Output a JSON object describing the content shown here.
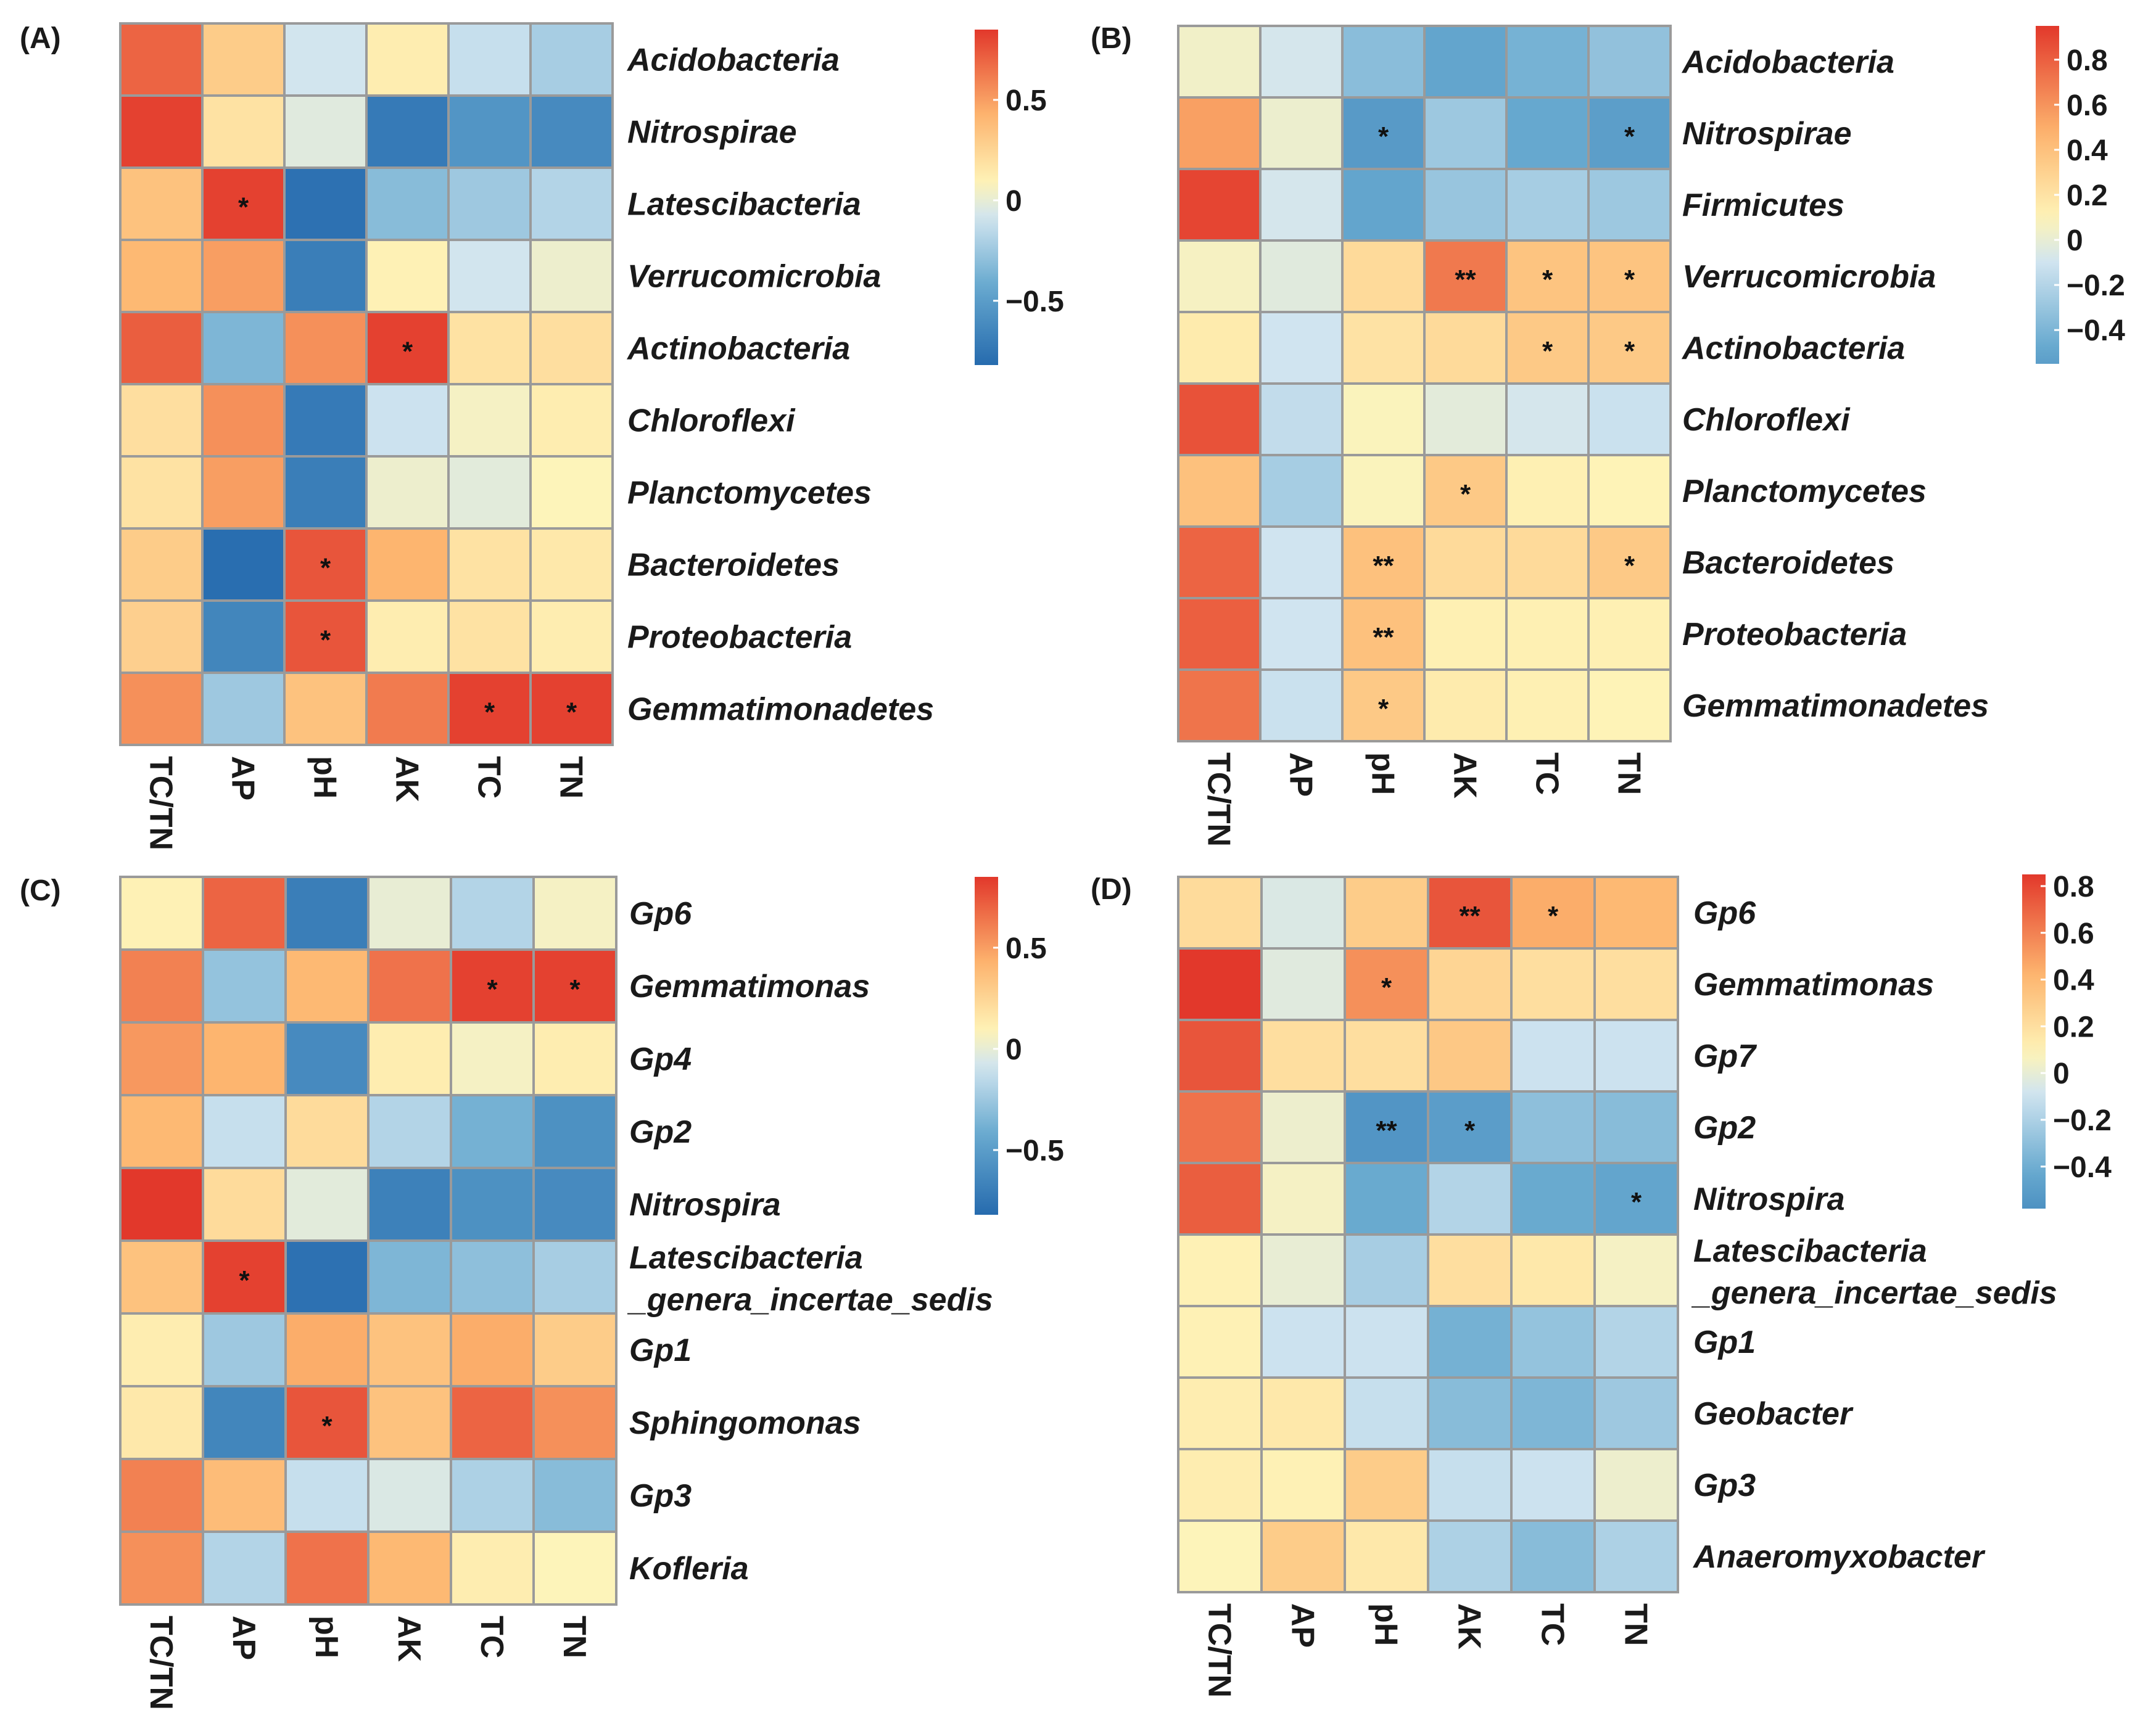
{
  "chart_data": [
    {
      "type": "heatmap",
      "panel_label": "(A)",
      "columns": [
        "TC/TN",
        "AP",
        "pH",
        "AK",
        "TC",
        "TN"
      ],
      "rows": [
        "Acidobacteria",
        "Nitrospirae",
        "Latescibacteria",
        "Verrucomicrobia",
        "Actinobacteria",
        "Chloroflexi",
        "Planctomycetes",
        "Bacteroidetes",
        "Proteobacteria",
        "Gemmatimonadetes"
      ],
      "values": [
        [
          0.7,
          0.3,
          -0.08,
          0.12,
          -0.12,
          -0.22
        ],
        [
          0.82,
          0.18,
          -0.03,
          -0.72,
          -0.55,
          -0.62
        ],
        [
          0.35,
          0.82,
          -0.78,
          -0.32,
          -0.25,
          -0.18
        ],
        [
          0.4,
          0.5,
          -0.7,
          0.1,
          -0.08,
          0.02
        ],
        [
          0.72,
          -0.35,
          0.55,
          0.82,
          0.18,
          0.2
        ],
        [
          0.2,
          0.55,
          -0.72,
          -0.1,
          0.05,
          0.12
        ],
        [
          0.18,
          0.5,
          -0.7,
          0.02,
          -0.02,
          0.08
        ],
        [
          0.3,
          -0.8,
          0.75,
          0.42,
          0.18,
          0.15
        ],
        [
          0.28,
          -0.65,
          0.75,
          0.12,
          0.18,
          0.12
        ],
        [
          0.55,
          -0.25,
          0.35,
          0.62,
          0.82,
          0.82
        ]
      ],
      "significance": [
        [
          "",
          "",
          "",
          "",
          "",
          ""
        ],
        [
          "",
          "",
          "",
          "",
          "",
          ""
        ],
        [
          "",
          "*",
          "",
          "",
          "",
          ""
        ],
        [
          "",
          "",
          "",
          "",
          "",
          ""
        ],
        [
          "",
          "",
          "",
          "*",
          "",
          ""
        ],
        [
          "",
          "",
          "",
          "",
          "",
          ""
        ],
        [
          "",
          "",
          "",
          "",
          "",
          ""
        ],
        [
          "",
          "",
          "*",
          "",
          "",
          ""
        ],
        [
          "",
          "",
          "*",
          "",
          "",
          ""
        ],
        [
          "",
          "",
          "",
          "",
          "*",
          "*"
        ]
      ],
      "colorbar": {
        "min": -0.82,
        "max": 0.85,
        "ticks": [
          0.5,
          0,
          -0.5
        ],
        "tick_labels": [
          "0.5",
          "0",
          "−0.5"
        ]
      }
    },
    {
      "type": "heatmap",
      "panel_label": "(B)",
      "columns": [
        "TC/TN",
        "AP",
        "pH",
        "AK",
        "TC",
        "TN"
      ],
      "rows": [
        "Acidobacteria",
        "Nitrospirae",
        "Firmicutes",
        "Verrucomicrobia",
        "Actinobacteria",
        "Chloroflexi",
        "Planctomycetes",
        "Bacteroidetes",
        "Proteobacteria",
        "Gemmatimonadetes"
      ],
      "values": [
        [
          0.04,
          -0.08,
          -0.35,
          -0.5,
          -0.42,
          -0.32
        ],
        [
          0.55,
          0.02,
          -0.58,
          -0.28,
          -0.48,
          -0.55
        ],
        [
          0.9,
          -0.08,
          -0.5,
          -0.3,
          -0.25,
          -0.28
        ],
        [
          0.06,
          -0.03,
          0.25,
          0.7,
          0.38,
          0.38
        ],
        [
          0.15,
          -0.1,
          0.2,
          0.25,
          0.35,
          0.35
        ],
        [
          0.85,
          -0.15,
          0.08,
          -0.02,
          -0.08,
          -0.12
        ],
        [
          0.4,
          -0.25,
          0.08,
          0.35,
          0.12,
          0.1
        ],
        [
          0.78,
          -0.1,
          0.4,
          0.25,
          0.25,
          0.35
        ],
        [
          0.8,
          -0.1,
          0.4,
          0.12,
          0.12,
          0.12
        ],
        [
          0.72,
          -0.12,
          0.35,
          0.15,
          0.12,
          0.1
        ]
      ],
      "significance": [
        [
          "",
          "",
          "",
          "",
          "",
          ""
        ],
        [
          "",
          "",
          "*",
          "",
          "",
          "*"
        ],
        [
          "",
          "",
          "",
          "",
          "",
          ""
        ],
        [
          "",
          "",
          "",
          "**",
          "*",
          "*"
        ],
        [
          "",
          "",
          "",
          "",
          "*",
          "*"
        ],
        [
          "",
          "",
          "",
          "",
          "",
          ""
        ],
        [
          "",
          "",
          "",
          "*",
          "",
          ""
        ],
        [
          "",
          "",
          "**",
          "",
          "",
          "*"
        ],
        [
          "",
          "",
          "**",
          "",
          "",
          ""
        ],
        [
          "",
          "",
          "*",
          "",
          "",
          ""
        ]
      ],
      "colorbar": {
        "min": -0.55,
        "max": 0.95,
        "ticks": [
          0.8,
          0.6,
          0.4,
          0.2,
          0,
          -0.2,
          -0.4
        ],
        "tick_labels": [
          "0.8",
          "0.6",
          "0.4",
          "0.2",
          "0",
          "−0.2",
          "−0.4"
        ]
      }
    },
    {
      "type": "heatmap",
      "panel_label": "(C)",
      "columns": [
        "TC/TN",
        "AP",
        "pH",
        "AK",
        "TC",
        "TN"
      ],
      "rows": [
        "Gp6",
        "Gemmatimonas",
        "Gp4",
        "Gp2",
        "Nitrospira",
        "Latescibacteria\n_genera_incertae_sedis",
        "Gp1",
        "Sphingomonas",
        "Gp3",
        "Kofleria"
      ],
      "values": [
        [
          0.1,
          0.7,
          -0.7,
          0.0,
          -0.18,
          0.05
        ],
        [
          0.6,
          -0.28,
          0.4,
          0.65,
          0.82,
          0.82
        ],
        [
          0.52,
          0.42,
          -0.62,
          0.12,
          0.05,
          0.12
        ],
        [
          0.4,
          -0.12,
          0.22,
          -0.18,
          -0.38,
          -0.58
        ],
        [
          0.85,
          0.22,
          -0.02,
          -0.68,
          -0.58,
          -0.62
        ],
        [
          0.35,
          0.82,
          -0.78,
          -0.35,
          -0.3,
          -0.22
        ],
        [
          0.12,
          -0.25,
          0.45,
          0.35,
          0.45,
          0.3
        ],
        [
          0.15,
          -0.65,
          0.75,
          0.35,
          0.7,
          0.55
        ],
        [
          0.6,
          0.38,
          -0.12,
          -0.05,
          -0.2,
          -0.32
        ],
        [
          0.55,
          -0.18,
          0.65,
          0.4,
          0.12,
          0.08
        ]
      ],
      "significance": [
        [
          "",
          "",
          "",
          "",
          "",
          ""
        ],
        [
          "",
          "",
          "",
          "",
          "*",
          "*"
        ],
        [
          "",
          "",
          "",
          "",
          "",
          ""
        ],
        [
          "",
          "",
          "",
          "",
          "",
          ""
        ],
        [
          "",
          "",
          "",
          "",
          "",
          ""
        ],
        [
          "",
          "*",
          "",
          "",
          "",
          ""
        ],
        [
          "",
          "",
          "",
          "",
          "",
          ""
        ],
        [
          "",
          "",
          "*",
          "",
          "",
          ""
        ],
        [
          "",
          "",
          "",
          "",
          "",
          ""
        ],
        [
          "",
          "",
          "",
          "",
          "",
          ""
        ]
      ],
      "colorbar": {
        "min": -0.82,
        "max": 0.85,
        "ticks": [
          0.5,
          0,
          -0.5
        ],
        "tick_labels": [
          "0.5",
          "0",
          "−0.5"
        ]
      }
    },
    {
      "type": "heatmap",
      "panel_label": "(D)",
      "columns": [
        "TC/TN",
        "AP",
        "pH",
        "AK",
        "TC",
        "TN"
      ],
      "rows": [
        "Gp6",
        "Gemmatimonas",
        "Gp7",
        "Gp2",
        "Nitrospira",
        "Latescibacteria\n_genera_incertae_sedis",
        "Gp1",
        "Geobacter",
        "Gp3",
        "Anaeromyxobacter"
      ],
      "values": [
        [
          0.22,
          -0.05,
          0.3,
          0.75,
          0.45,
          0.4
        ],
        [
          0.85,
          -0.03,
          0.55,
          0.25,
          0.2,
          0.2
        ],
        [
          0.75,
          0.2,
          0.2,
          0.32,
          -0.1,
          -0.1
        ],
        [
          0.65,
          0.02,
          -0.55,
          -0.5,
          -0.3,
          -0.32
        ],
        [
          0.72,
          0.05,
          -0.42,
          -0.18,
          -0.42,
          -0.45
        ],
        [
          0.1,
          0.0,
          -0.22,
          0.2,
          0.15,
          0.05
        ],
        [
          0.1,
          -0.1,
          -0.1,
          -0.38,
          -0.28,
          -0.18
        ],
        [
          0.12,
          0.15,
          -0.12,
          -0.32,
          -0.35,
          -0.25
        ],
        [
          0.12,
          0.1,
          0.3,
          -0.12,
          -0.1,
          0.02
        ],
        [
          0.08,
          0.3,
          0.15,
          -0.2,
          -0.32,
          -0.2
        ]
      ],
      "significance": [
        [
          "",
          "",
          "",
          "**",
          "*",
          ""
        ],
        [
          "",
          "",
          "*",
          "",
          "",
          ""
        ],
        [
          "",
          "",
          "",
          "",
          "",
          ""
        ],
        [
          "",
          "",
          "**",
          "*",
          "",
          ""
        ],
        [
          "",
          "",
          "",
          "",
          "",
          "*"
        ],
        [
          "",
          "",
          "",
          "",
          "",
          ""
        ],
        [
          "",
          "",
          "",
          "",
          "",
          ""
        ],
        [
          "",
          "",
          "",
          "",
          "",
          ""
        ],
        [
          "",
          "",
          "",
          "",
          "",
          ""
        ],
        [
          "",
          "",
          "",
          "",
          "",
          ""
        ]
      ],
      "colorbar": {
        "min": -0.58,
        "max": 0.85,
        "ticks": [
          0.8,
          0.6,
          0.4,
          0.2,
          0,
          -0.2,
          -0.4
        ],
        "tick_labels": [
          "0.8",
          "0.6",
          "0.4",
          "0.2",
          "0",
          "−0.2",
          "−0.4"
        ]
      }
    }
  ]
}
